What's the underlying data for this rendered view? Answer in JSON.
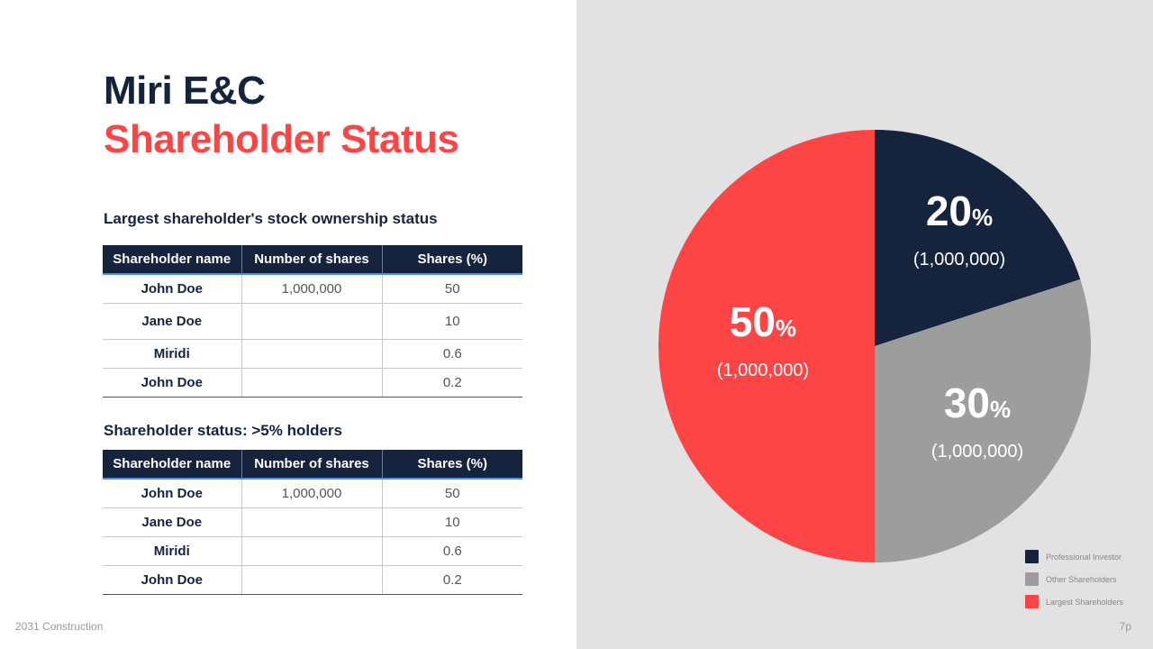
{
  "title": {
    "line1": "Miri E&C",
    "line2": "Shareholder Status"
  },
  "sections": [
    {
      "heading": "Largest shareholder's stock ownership status",
      "columns": [
        "Shareholder name",
        "Number of shares",
        "Shares (%)"
      ],
      "rows": [
        [
          "John Doe",
          "1,000,000",
          "50"
        ],
        [
          "Jane Doe",
          "",
          "10"
        ],
        [
          "Miridi",
          "",
          "0.6"
        ],
        [
          "John Doe",
          "",
          "0.2"
        ]
      ]
    },
    {
      "heading": "Shareholder status: >5% holders",
      "columns": [
        "Shareholder name",
        "Number of shares",
        "Shares (%)"
      ],
      "rows": [
        [
          "John Doe",
          "1,000,000",
          "50"
        ],
        [
          "Jane Doe",
          "",
          "10"
        ],
        [
          "Miridi",
          "",
          "0.6"
        ],
        [
          "John Doe",
          "",
          "0.2"
        ]
      ]
    }
  ],
  "chart_data": {
    "type": "pie",
    "slices": [
      {
        "label": "Professional Investor",
        "value": 20,
        "value_text": "20",
        "unit": "%",
        "sublabel": "(1,000,000)",
        "color": "#15233d"
      },
      {
        "label": "Other Shareholders",
        "value": 30,
        "value_text": "30",
        "unit": "%",
        "sublabel": "(1,000,000)",
        "color": "#9e9d9e"
      },
      {
        "label": "Largest Shareholders",
        "value": 50,
        "value_text": "50",
        "unit": "%",
        "sublabel": "(1,000,000)",
        "color": "#fe4545"
      }
    ],
    "legend_position": "bottom-right"
  },
  "footer": {
    "left": "2031 Construction",
    "right": "7p"
  }
}
